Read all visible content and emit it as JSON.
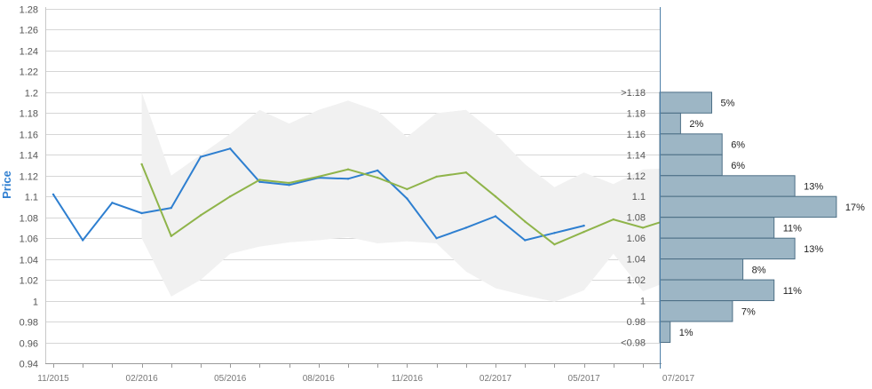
{
  "chart_data": {
    "type": "line",
    "title": "",
    "xlabel": "",
    "ylabel": "Price",
    "ylim": [
      0.94,
      1.28
    ],
    "y_ticks": [
      "0.94",
      "0.96",
      "0.98",
      "1",
      "1.02",
      "1.04",
      "1.06",
      "1.08",
      "1.1",
      "1.12",
      "1.14",
      "1.16",
      "1.18",
      "1.2",
      "1.22",
      "1.24",
      "1.26",
      "1.28"
    ],
    "x_ticks": [
      "11/2015",
      "02/2016",
      "05/2016",
      "08/2016",
      "11/2016",
      "02/2017",
      "05/2017",
      "07/2017"
    ],
    "grid": true,
    "colors": {
      "price": "#2e7fd0",
      "forecast": "#8fb44a",
      "band": "#f1f1f1",
      "bars": "#9db6c5",
      "bar_border": "#4d6f86",
      "ylabel": "#2f7fd1"
    },
    "series": [
      {
        "key": "price",
        "x": [
          "2015-11",
          "2015-12",
          "2016-01",
          "2016-02",
          "2016-03",
          "2016-04",
          "2016-05",
          "2016-06",
          "2016-07",
          "2016-08",
          "2016-09",
          "2016-10",
          "2016-11",
          "2016-12",
          "2017-01",
          "2017-02",
          "2017-03",
          "2017-04",
          "2017-05"
        ],
        "values": [
          1.102,
          1.058,
          1.094,
          1.084,
          1.089,
          1.138,
          1.146,
          1.114,
          1.111,
          1.118,
          1.117,
          1.125,
          1.098,
          1.06,
          1.07,
          1.081,
          1.058,
          1.065,
          1.072
        ]
      },
      {
        "key": "forecast",
        "x": [
          "2016-02",
          "2016-03",
          "2016-04",
          "2016-05",
          "2016-06",
          "2016-07",
          "2016-08",
          "2016-09",
          "2016-10",
          "2016-11",
          "2016-12",
          "2017-01",
          "2017-02",
          "2017-03",
          "2017-04",
          "2017-05",
          "2017-06",
          "2017-07",
          "2017-08"
        ],
        "values": [
          1.131,
          1.062,
          1.082,
          1.1,
          1.116,
          1.113,
          1.119,
          1.126,
          1.118,
          1.107,
          1.119,
          1.123,
          1.1,
          1.076,
          1.054,
          1.066,
          1.078,
          1.07,
          1.079
        ]
      }
    ],
    "band": {
      "x": [
        "2016-02",
        "2016-03",
        "2016-04",
        "2016-05",
        "2016-06",
        "2016-07",
        "2016-08",
        "2016-09",
        "2016-10",
        "2016-11",
        "2016-12",
        "2017-01",
        "2017-02",
        "2017-03",
        "2017-04",
        "2017-05",
        "2017-06",
        "2017-07",
        "2017-08"
      ],
      "upper": [
        1.2,
        1.12,
        1.14,
        1.16,
        1.183,
        1.17,
        1.183,
        1.192,
        1.182,
        1.157,
        1.18,
        1.183,
        1.16,
        1.131,
        1.109,
        1.123,
        1.112,
        1.126,
        1.127
      ],
      "lower": [
        1.06,
        1.004,
        1.02,
        1.045,
        1.052,
        1.056,
        1.058,
        1.061,
        1.055,
        1.057,
        1.055,
        1.028,
        1.012,
        1.005,
        0.999,
        1.01,
        1.045,
        1.009,
        1.02
      ]
    },
    "distribution": [
      {
        "label": ">1.18",
        "pct": 5,
        "text": "5%"
      },
      {
        "label": "1.18",
        "pct": 2,
        "text": "2%"
      },
      {
        "label": "1.16",
        "pct": 6,
        "text": "6%"
      },
      {
        "label": "1.14",
        "pct": 6,
        "text": "6%"
      },
      {
        "label": "1.12",
        "pct": 13,
        "text": "13%"
      },
      {
        "label": "1.1",
        "pct": 17,
        "text": "17%"
      },
      {
        "label": "1.08",
        "pct": 11,
        "text": "11%"
      },
      {
        "label": "1.06",
        "pct": 13,
        "text": "13%"
      },
      {
        "label": "1.04",
        "pct": 8,
        "text": "8%"
      },
      {
        "label": "1.02",
        "pct": 11,
        "text": "11%"
      },
      {
        "label": "1",
        "pct": 7,
        "text": "7%"
      },
      {
        "label": "0.98",
        "pct": 1,
        "text": "1%"
      },
      {
        "label": "<0.98",
        "pct": null,
        "text": ""
      }
    ]
  }
}
